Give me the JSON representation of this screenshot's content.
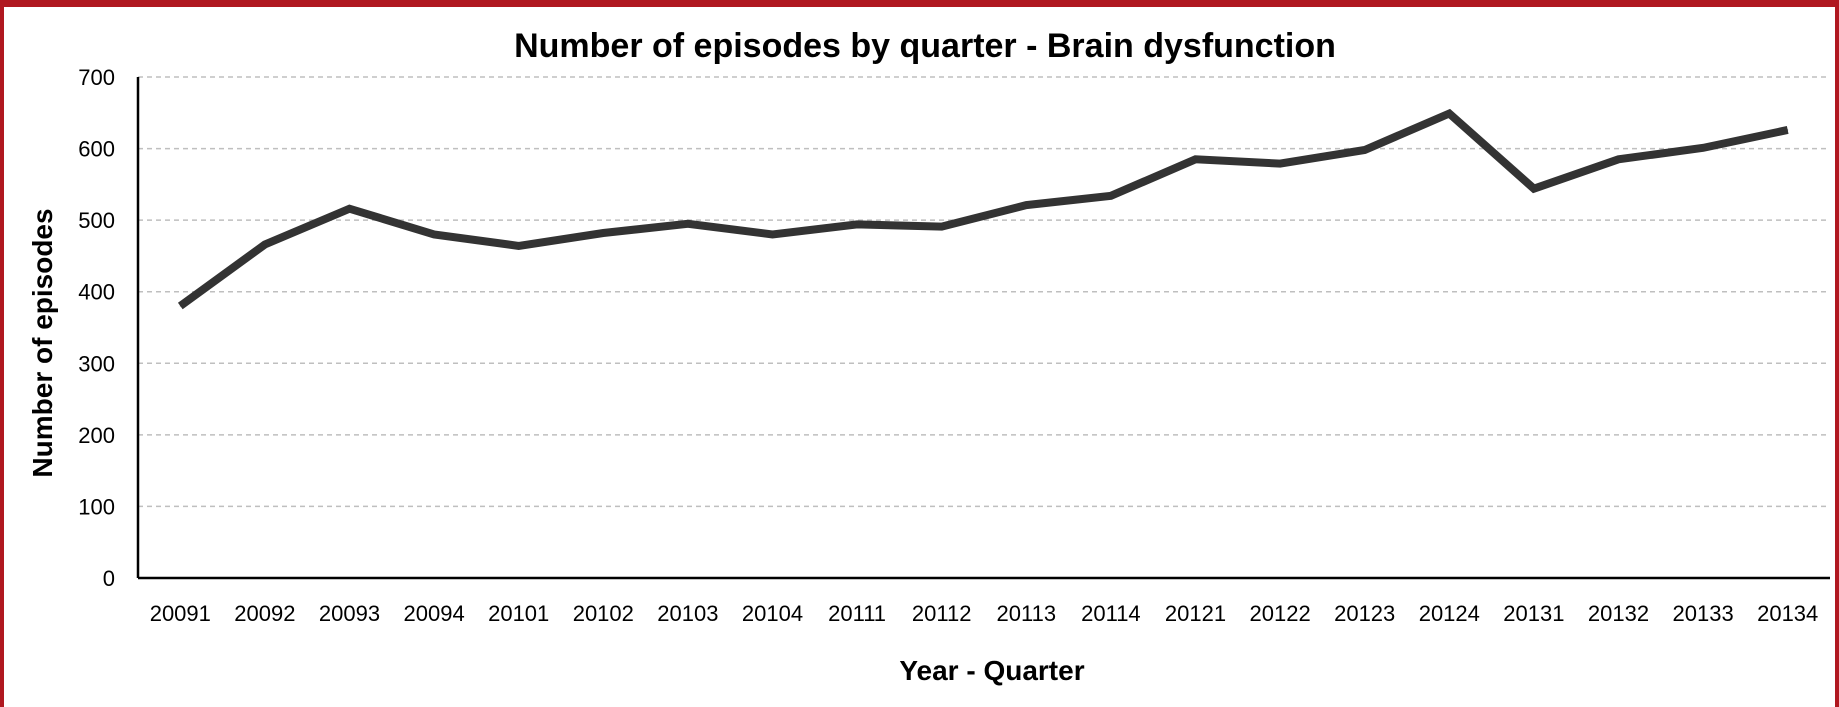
{
  "chart_data": {
    "type": "line",
    "title": "Number of episodes by quarter - Brain dysfunction",
    "xlabel": "Year - Quarter",
    "ylabel": "Number of episodes",
    "categories": [
      "20091",
      "20092",
      "20093",
      "20094",
      "20101",
      "20102",
      "20103",
      "20104",
      "20111",
      "20112",
      "20113",
      "20114",
      "20121",
      "20122",
      "20123",
      "20124",
      "20131",
      "20132",
      "20133",
      "20134"
    ],
    "series": [
      {
        "values": [
          380,
          466,
          516,
          480,
          464,
          482,
          495,
          480,
          494,
          491,
          521,
          534,
          585,
          579,
          598,
          649,
          544,
          585,
          601,
          626
        ]
      }
    ],
    "ylim": [
      0,
      700
    ],
    "yticks": [
      0,
      100,
      200,
      300,
      400,
      500,
      600,
      700
    ],
    "grid": "horizontal dashed",
    "legend": "none",
    "colors": {
      "line": "#333333",
      "grid": "#bfbfbf",
      "axis": "#000000",
      "border": "#b01820"
    }
  }
}
